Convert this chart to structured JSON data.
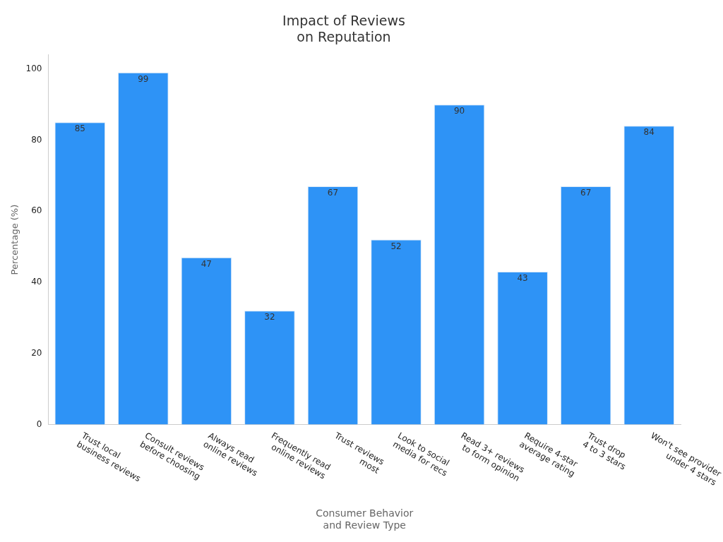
{
  "chart_data": {
    "type": "bar",
    "title": "Impact of Reviews\non Reputation",
    "xlabel": "Consumer Behavior\nand Review Type",
    "ylabel": "Percentage (%)",
    "categories": [
      "Trust local\nbusiness reviews",
      "Consult reviews\nbefore choosing",
      "Always read\nonline reviews",
      "Frequently read\nonline reviews",
      "Trust reviews\nmost",
      "Look to social\nmedia for recs",
      "Read 3+ reviews\nto form opinion",
      "Require 4-star\naverage rating",
      "Trust drop\n4 to 3 stars",
      "Won't see provider\nunder 4 stars"
    ],
    "values": [
      85,
      99,
      47,
      32,
      67,
      52,
      90,
      43,
      67,
      84
    ],
    "color": "#2e93f6",
    "ylim": [
      0,
      104
    ],
    "yticks": [
      0,
      20,
      40,
      60,
      80,
      100
    ],
    "grid": false,
    "legend": false,
    "data_labels": true
  }
}
